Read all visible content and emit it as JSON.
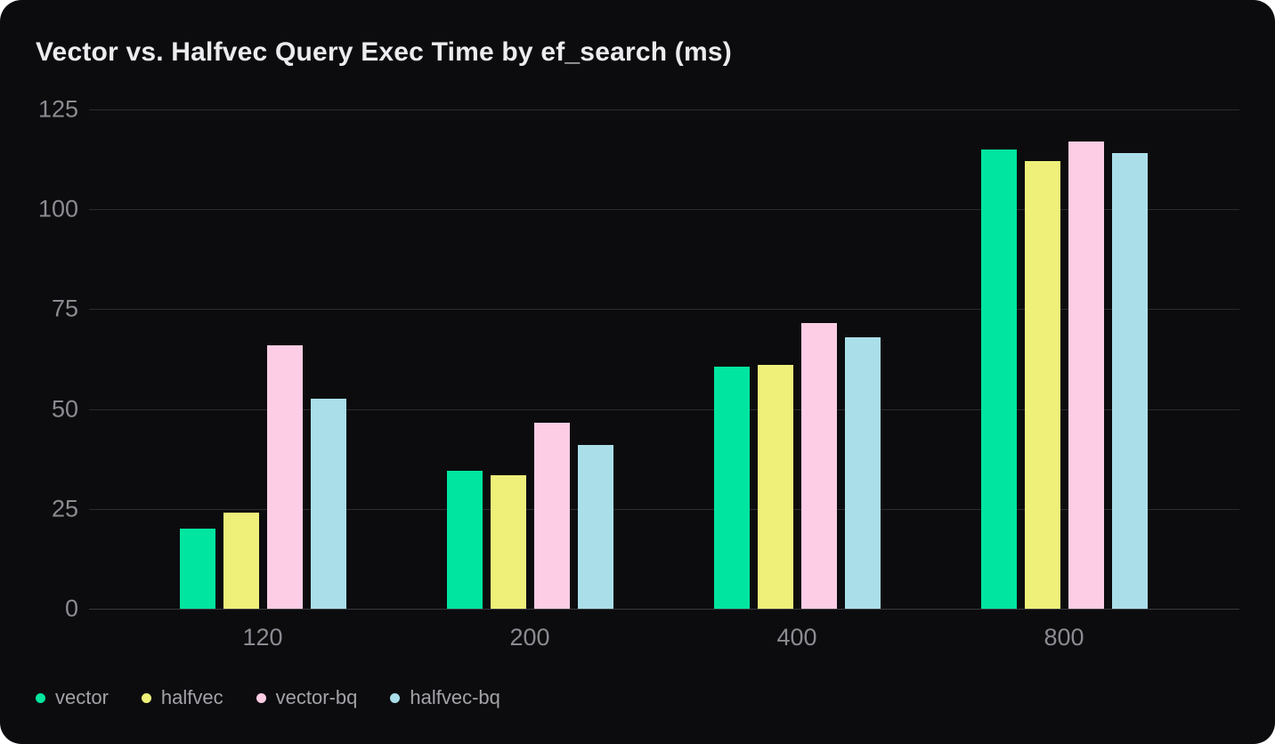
{
  "theme": {
    "page_bg": "#ffffff",
    "card_bg": "#0c0c0e",
    "grid_color": "#2c2c30",
    "grid_zero_color": "#3a3a3f",
    "tick_color": "#8b8b92",
    "title_color": "#ececf0",
    "legend_color": "#a2a2a8"
  },
  "chart_data": {
    "type": "bar",
    "title": "Vector vs. Halfvec Query Exec Time by ef_search (ms)",
    "xlabel": "",
    "ylabel": "",
    "categories": [
      "120",
      "200",
      "400",
      "800"
    ],
    "series": [
      {
        "name": "vector",
        "color": "#00e5a0",
        "values": [
          20,
          34.5,
          60.5,
          115
        ]
      },
      {
        "name": "halfvec",
        "color": "#eef07a",
        "values": [
          24,
          33.5,
          61,
          112
        ]
      },
      {
        "name": "vector-bq",
        "color": "#fccde4",
        "values": [
          66,
          46.5,
          71.5,
          117
        ]
      },
      {
        "name": "halfvec-bq",
        "color": "#aadfe9",
        "values": [
          52.5,
          41,
          68,
          114
        ]
      }
    ],
    "ylim": [
      0,
      125
    ],
    "yticks": [
      0,
      25,
      50,
      75,
      100,
      125
    ],
    "grid": true,
    "legend_position": "bottom-left"
  }
}
